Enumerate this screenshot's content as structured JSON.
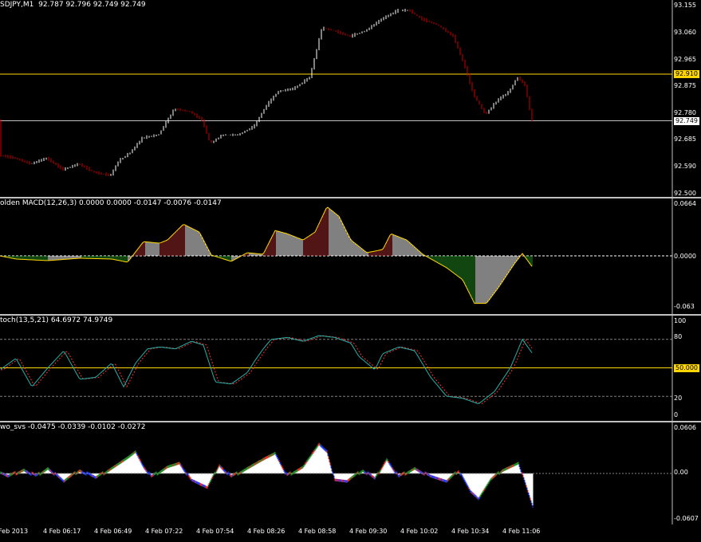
{
  "price": {
    "header": "SDJPY,M1  92.787 92.796 92.749 92.749",
    "ticks": [
      "93.155",
      "93.060",
      "92.965",
      "92.875",
      "92.780",
      "92.685",
      "92.590",
      "92.500"
    ],
    "axis_min": 92.5,
    "axis_max": 93.155,
    "hline_label": "92.910",
    "hline_value": 92.91,
    "bid_label": "92.749",
    "bid_value": 92.749,
    "colors": {
      "up": "#ffffff",
      "down": "#cc0000",
      "hline": "#ffd700",
      "bid": "#c0c0c0"
    },
    "keypoints": [
      [
        0,
        92.63
      ],
      [
        20,
        92.62
      ],
      [
        40,
        92.6
      ],
      [
        60,
        92.62
      ],
      [
        80,
        92.58
      ],
      [
        100,
        92.6
      ],
      [
        120,
        92.57
      ],
      [
        140,
        92.56
      ],
      [
        150,
        92.61
      ],
      [
        165,
        92.64
      ],
      [
        180,
        92.69
      ],
      [
        200,
        92.7
      ],
      [
        220,
        92.79
      ],
      [
        240,
        92.78
      ],
      [
        255,
        92.75
      ],
      [
        265,
        92.67
      ],
      [
        280,
        92.7
      ],
      [
        300,
        92.7
      ],
      [
        320,
        92.73
      ],
      [
        335,
        92.8
      ],
      [
        350,
        92.85
      ],
      [
        370,
        92.86
      ],
      [
        390,
        92.9
      ],
      [
        405,
        93.07
      ],
      [
        420,
        93.06
      ],
      [
        440,
        93.04
      ],
      [
        460,
        93.06
      ],
      [
        480,
        93.1
      ],
      [
        500,
        93.13
      ],
      [
        515,
        93.13
      ],
      [
        530,
        93.1
      ],
      [
        550,
        93.08
      ],
      [
        570,
        93.04
      ],
      [
        585,
        92.93
      ],
      [
        595,
        92.84
      ],
      [
        610,
        92.77
      ],
      [
        625,
        92.82
      ],
      [
        640,
        92.85
      ],
      [
        650,
        92.9
      ],
      [
        660,
        92.87
      ],
      [
        668,
        92.749
      ]
    ]
  },
  "macd": {
    "header": "olden MACD(12,26,3) 0.0000 0.0000 -0.0147 -0.0076 -0.0147",
    "ticks": [
      "0.0664",
      "0.0000",
      "-0.063"
    ],
    "axis_min": -0.0664,
    "axis_max": 0.0664,
    "colors": {
      "up": "#a52a2a",
      "down": "#228b22",
      "zero": "#ffffff",
      "signal": "#ffd700"
    },
    "keypoints": [
      [
        0,
        0
      ],
      [
        20,
        -0.004
      ],
      [
        60,
        -0.006
      ],
      [
        100,
        -0.003
      ],
      [
        140,
        -0.004
      ],
      [
        160,
        -0.008
      ],
      [
        180,
        0.018
      ],
      [
        200,
        0.016
      ],
      [
        210,
        0.02
      ],
      [
        230,
        0.04
      ],
      [
        250,
        0.03
      ],
      [
        265,
        0.001
      ],
      [
        290,
        -0.007
      ],
      [
        310,
        0.004
      ],
      [
        330,
        0.002
      ],
      [
        345,
        0.032
      ],
      [
        360,
        0.028
      ],
      [
        380,
        0.02
      ],
      [
        395,
        0.03
      ],
      [
        410,
        0.062
      ],
      [
        425,
        0.05
      ],
      [
        440,
        0.02
      ],
      [
        460,
        0.004
      ],
      [
        480,
        0.008
      ],
      [
        490,
        0.028
      ],
      [
        510,
        0.02
      ],
      [
        530,
        0.002
      ],
      [
        560,
        -0.015
      ],
      [
        580,
        -0.03
      ],
      [
        595,
        -0.06
      ],
      [
        610,
        -0.06
      ],
      [
        625,
        -0.04
      ],
      [
        645,
        -0.01
      ],
      [
        655,
        0.003
      ],
      [
        668,
        -0.0147
      ]
    ]
  },
  "stoch": {
    "header": "toch(13,5,21) 64.6972 74.9749",
    "ticks": [
      "100",
      "80",
      "20",
      "0"
    ],
    "level_label": "50.000",
    "levels": [
      80,
      50,
      20
    ],
    "colors": {
      "main": "#20b2aa",
      "signal": "#ff3030",
      "level": "#ffd700",
      "dotted": "#808080"
    },
    "keypoints": [
      [
        0,
        48
      ],
      [
        20,
        60
      ],
      [
        40,
        30
      ],
      [
        60,
        50
      ],
      [
        80,
        68
      ],
      [
        100,
        38
      ],
      [
        120,
        40
      ],
      [
        140,
        55
      ],
      [
        155,
        30
      ],
      [
        170,
        55
      ],
      [
        185,
        70
      ],
      [
        200,
        72
      ],
      [
        220,
        70
      ],
      [
        240,
        78
      ],
      [
        255,
        74
      ],
      [
        270,
        35
      ],
      [
        290,
        33
      ],
      [
        310,
        45
      ],
      [
        320,
        58
      ],
      [
        330,
        70
      ],
      [
        340,
        80
      ],
      [
        360,
        82
      ],
      [
        380,
        78
      ],
      [
        400,
        84
      ],
      [
        420,
        82
      ],
      [
        440,
        76
      ],
      [
        450,
        62
      ],
      [
        460,
        55
      ],
      [
        470,
        48
      ],
      [
        480,
        65
      ],
      [
        500,
        72
      ],
      [
        520,
        68
      ],
      [
        540,
        40
      ],
      [
        560,
        20
      ],
      [
        580,
        18
      ],
      [
        600,
        12
      ],
      [
        620,
        25
      ],
      [
        640,
        50
      ],
      [
        655,
        80
      ],
      [
        668,
        64.7
      ]
    ]
  },
  "awo": {
    "header": "wo_svs -0.0475 -0.0339 -0.0102 -0.0272",
    "ticks": [
      "0.0606",
      "0.00",
      "-0.0607"
    ],
    "axis_min": -0.0607,
    "axis_max": 0.0606,
    "colors": {
      "pos": "#ffffff",
      "neg": "#ffffff",
      "edge_g": "#228b22",
      "edge_b": "#1e3cff",
      "edge_r": "#ff2020"
    },
    "keypoints": [
      [
        0,
        0
      ],
      [
        10,
        -0.005
      ],
      [
        30,
        0.006
      ],
      [
        45,
        -0.004
      ],
      [
        60,
        0.008
      ],
      [
        80,
        -0.012
      ],
      [
        100,
        0.005
      ],
      [
        120,
        -0.007
      ],
      [
        140,
        0.008
      ],
      [
        160,
        0.022
      ],
      [
        170,
        0.03
      ],
      [
        180,
        0.01
      ],
      [
        190,
        -0.005
      ],
      [
        210,
        0.01
      ],
      [
        225,
        0.015
      ],
      [
        240,
        -0.01
      ],
      [
        260,
        -0.02
      ],
      [
        275,
        0.012
      ],
      [
        290,
        -0.005
      ],
      [
        310,
        0.008
      ],
      [
        330,
        0.02
      ],
      [
        345,
        0.028
      ],
      [
        360,
        -0.003
      ],
      [
        380,
        0.01
      ],
      [
        400,
        0.04
      ],
      [
        410,
        0.03
      ],
      [
        420,
        -0.01
      ],
      [
        435,
        -0.012
      ],
      [
        455,
        0.005
      ],
      [
        470,
        -0.008
      ],
      [
        485,
        0.02
      ],
      [
        500,
        -0.005
      ],
      [
        520,
        0.008
      ],
      [
        540,
        -0.005
      ],
      [
        560,
        -0.012
      ],
      [
        575,
        0.004
      ],
      [
        590,
        -0.025
      ],
      [
        600,
        -0.035
      ],
      [
        615,
        -0.01
      ],
      [
        630,
        0.005
      ],
      [
        650,
        0.015
      ],
      [
        668,
        -0.045
      ]
    ]
  },
  "time_axis": [
    "Feb 2013",
    "4 Feb 06:17",
    "4 Feb 06:49",
    "4 Feb 07:22",
    "4 Feb 07:54",
    "4 Feb 08:26",
    "4 Feb 08:58",
    "4 Feb 09:30",
    "4 Feb 10:02",
    "4 Feb 10:34",
    "4 Feb 11:06"
  ]
}
